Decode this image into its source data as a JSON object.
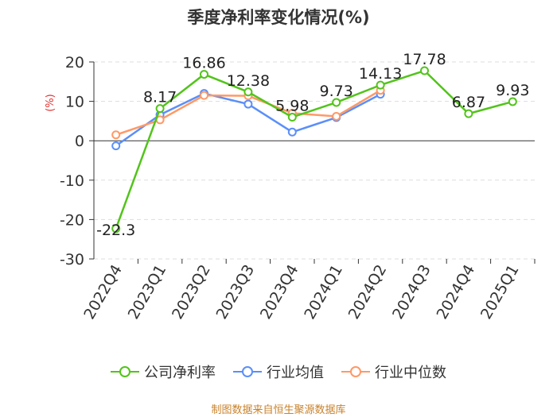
{
  "chart_data": {
    "type": "line",
    "title": "季度净利率变化情况(%)",
    "ylabel": "(%)",
    "categories": [
      "2022Q4",
      "2023Q1",
      "2023Q2",
      "2023Q3",
      "2023Q4",
      "2024Q1",
      "2024Q2",
      "2024Q3",
      "2024Q4",
      "2025Q1"
    ],
    "ylim": [
      -30,
      20
    ],
    "yticks": [
      "20",
      "10",
      "0",
      "-10",
      "-20",
      "-30"
    ],
    "grid": "horizontal-dashed",
    "legend_position": "bottom",
    "series": [
      {
        "name": "公司净利率",
        "color": "#52c41a",
        "values": [
          -22.3,
          8.17,
          16.86,
          12.38,
          5.98,
          9.73,
          14.13,
          17.78,
          6.87,
          9.93
        ],
        "labels": [
          "-22.3",
          "8.17",
          "16.86",
          "12.38",
          "5.98",
          "9.73",
          "14.13",
          "17.78",
          "6.87",
          "9.93"
        ]
      },
      {
        "name": "行业均值",
        "color": "#5b8ff9",
        "values": [
          -1.3,
          6.6,
          12.0,
          9.3,
          2.2,
          5.9,
          11.8,
          null,
          null,
          null
        ]
      },
      {
        "name": "行业中位数",
        "color": "#ff9966",
        "values": [
          1.5,
          5.3,
          11.5,
          11.4,
          7.0,
          6.2,
          12.8,
          null,
          null,
          null
        ]
      }
    ]
  },
  "source": "制图数据来自恒生聚源数据库"
}
